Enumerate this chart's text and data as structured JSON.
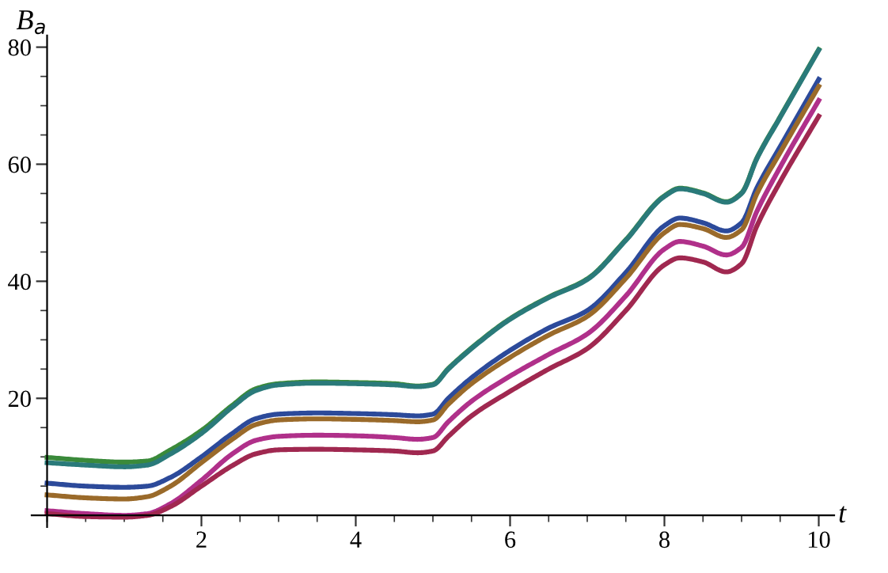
{
  "chart_data": {
    "type": "line",
    "xlabel": "t",
    "ylabel": "B$_{a}$",
    "x": [
      0,
      0.5,
      1,
      1.3,
      1.6,
      2,
      2.4,
      2.7,
      3,
      3.5,
      4,
      4.5,
      4.8,
      5,
      5.2,
      5.5,
      6,
      6.5,
      7,
      7.5,
      8,
      8.2,
      8.5,
      8.8,
      9,
      9.2,
      9.5,
      10
    ],
    "series": [
      {
        "color": "#3a8a3a",
        "values": [
          9.9,
          9.4,
          9.1,
          9.3,
          11.2,
          14.5,
          18.8,
          21.6,
          22.5,
          22.8,
          22.7,
          22.5,
          22.1,
          22.4,
          25.1,
          28.6,
          33.6,
          37.3,
          40.4,
          47.1,
          54.6,
          55.9,
          55.1,
          53.6,
          55.1,
          61.1,
          68.1,
          79.6
        ]
      },
      {
        "color": "#2a7a7a",
        "values": [
          9,
          8.6,
          8.3,
          8.6,
          10.5,
          14,
          18.5,
          21.3,
          22.3,
          22.6,
          22.5,
          22.3,
          22,
          22.3,
          25,
          28.5,
          33.5,
          37.2,
          40.3,
          47,
          54.5,
          55.8,
          55,
          53.5,
          55,
          61,
          68,
          79.5
        ]
      },
      {
        "color": "#2c4a9a",
        "values": [
          5.5,
          5,
          4.8,
          5,
          6.5,
          10,
          14,
          16.5,
          17.3,
          17.5,
          17.4,
          17.2,
          17,
          17.3,
          20,
          23.5,
          28.2,
          32,
          35,
          41.5,
          49.5,
          50.8,
          50,
          48.6,
          50,
          56,
          63,
          74.5
        ]
      },
      {
        "color": "#9a6a2a",
        "values": [
          3.5,
          3,
          2.8,
          3.2,
          5,
          9,
          13,
          15.5,
          16.3,
          16.5,
          16.4,
          16.2,
          16,
          16.3,
          19,
          22.5,
          27,
          30.8,
          34,
          40.5,
          48.3,
          49.7,
          49,
          47.5,
          48.8,
          55,
          62,
          73.3
        ]
      },
      {
        "color": "#b0308a",
        "values": [
          0.8,
          0.3,
          0,
          0.3,
          2,
          6,
          10.5,
          12.8,
          13.5,
          13.7,
          13.6,
          13.3,
          13,
          13.3,
          16,
          19.5,
          23.8,
          27.5,
          31,
          37.5,
          45.5,
          46.8,
          46,
          44.5,
          45.8,
          52,
          59.5,
          70.9
        ]
      },
      {
        "color": "#a02850",
        "values": [
          0.3,
          -0.2,
          -0.3,
          0,
          1.5,
          5,
          8.5,
          10.5,
          11.2,
          11.3,
          11.2,
          11,
          10.7,
          11,
          13.5,
          17,
          21.2,
          25,
          28.5,
          35,
          42.8,
          44,
          43.3,
          41.6,
          43,
          49.5,
          57,
          68.2
        ]
      }
    ],
    "xlim": [
      -0.2,
      10.2
    ],
    "ylim": [
      -2,
      82
    ],
    "xticks": [
      {
        "value": 0,
        "label": null
      },
      {
        "value": 0.5,
        "label": null
      },
      {
        "value": 1,
        "label": null
      },
      {
        "value": 1.5,
        "label": null
      },
      2,
      {
        "value": 2.5,
        "label": null
      },
      {
        "value": 3,
        "label": null
      },
      {
        "value": 3.5,
        "label": null
      },
      4,
      {
        "value": 4.5,
        "label": null
      },
      {
        "value": 5,
        "label": null
      },
      {
        "value": 5.5,
        "label": null
      },
      6,
      {
        "value": 6.5,
        "label": null
      },
      {
        "value": 7,
        "label": null
      },
      {
        "value": 7.5,
        "label": null
      },
      8,
      {
        "value": 8.5,
        "label": null
      },
      {
        "value": 9,
        "label": null
      },
      {
        "value": 9.5,
        "label": null
      },
      10
    ],
    "yticks": [
      {
        "value": 0,
        "label": null
      },
      {
        "value": 5,
        "label": null
      },
      {
        "value": 10,
        "label": null
      },
      {
        "value": 15,
        "label": null
      },
      20,
      {
        "value": 25,
        "label": null
      },
      {
        "value": 30,
        "label": null
      },
      {
        "value": 35,
        "label": null
      },
      40,
      {
        "value": 45,
        "label": null
      },
      {
        "value": 50,
        "label": null
      },
      {
        "value": 55,
        "label": null
      },
      60,
      {
        "value": 65,
        "label": null
      },
      {
        "value": 70,
        "label": null
      },
      {
        "value": 75,
        "label": null
      },
      80
    ],
    "grid": false,
    "legend": false,
    "marker": "none",
    "line_style": "solid"
  }
}
